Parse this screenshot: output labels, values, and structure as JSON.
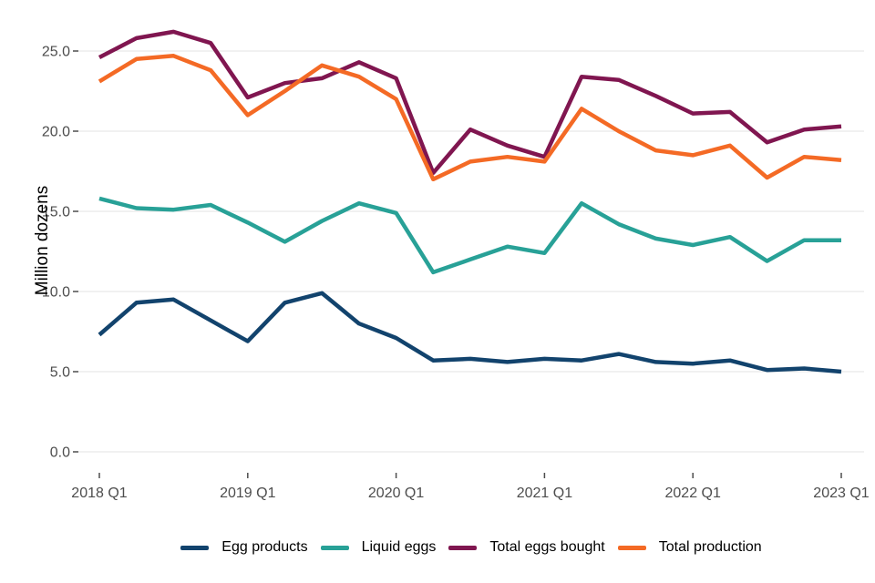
{
  "style": {
    "background": "#ffffff",
    "gridline_color": "#e3e3e3",
    "tick_color": "#4d4d4d",
    "axis_text_color": "#4d4d4d",
    "axis_title_color": "#000000"
  },
  "chart_data": {
    "type": "line",
    "title": "",
    "xlabel": "",
    "ylabel": "Million dozens",
    "ylim": [
      0,
      26.5
    ],
    "grid": "horizontal-only",
    "legend_position": "bottom",
    "yticks": [
      {
        "value": 0,
        "label": "0.0"
      },
      {
        "value": 5,
        "label": "5.0"
      },
      {
        "value": 10,
        "label": "10.0"
      },
      {
        "value": 15,
        "label": "15.0"
      },
      {
        "value": 20,
        "label": "20.0"
      },
      {
        "value": 25,
        "label": "25.0"
      }
    ],
    "xticks": [
      {
        "index": 0,
        "label": "2018 Q1"
      },
      {
        "index": 4,
        "label": "2019 Q1"
      },
      {
        "index": 8,
        "label": "2020 Q1"
      },
      {
        "index": 12,
        "label": "2021 Q1"
      },
      {
        "index": 16,
        "label": "2022 Q1"
      },
      {
        "index": 20,
        "label": "2023 Q1"
      }
    ],
    "categories": [
      "2018 Q1",
      "2018 Q2",
      "2018 Q3",
      "2018 Q4",
      "2019 Q1",
      "2019 Q2",
      "2019 Q3",
      "2019 Q4",
      "2020 Q1",
      "2020 Q2",
      "2020 Q3",
      "2020 Q4",
      "2021 Q1",
      "2021 Q2",
      "2021 Q3",
      "2021 Q4",
      "2022 Q1",
      "2022 Q2",
      "2022 Q3",
      "2022 Q4",
      "2023 Q1"
    ],
    "series": [
      {
        "id": "egg-products",
        "name": "Egg products",
        "color": "#12436D",
        "values": [
          7.3,
          9.3,
          9.5,
          8.2,
          6.9,
          9.3,
          9.9,
          8.0,
          7.1,
          5.7,
          5.8,
          5.6,
          5.8,
          5.7,
          6.1,
          5.6,
          5.5,
          5.7,
          5.1,
          5.2,
          5.0
        ]
      },
      {
        "id": "liquid-eggs",
        "name": "Liquid eggs",
        "color": "#28A197",
        "values": [
          15.8,
          15.2,
          15.1,
          15.4,
          14.3,
          13.1,
          14.4,
          15.5,
          14.9,
          11.2,
          12.0,
          12.8,
          12.4,
          15.5,
          14.2,
          13.3,
          12.9,
          13.4,
          11.9,
          13.2,
          13.2
        ]
      },
      {
        "id": "total-eggs-bought",
        "name": "Total eggs bought",
        "color": "#801650",
        "values": [
          24.6,
          25.8,
          26.2,
          25.5,
          22.1,
          23.0,
          23.3,
          24.3,
          23.3,
          17.4,
          20.1,
          19.1,
          18.4,
          23.4,
          23.2,
          22.2,
          21.1,
          21.2,
          19.3,
          20.1,
          20.3
        ]
      },
      {
        "id": "total-production",
        "name": "Total production",
        "color": "#F46A25",
        "values": [
          23.1,
          24.5,
          24.7,
          23.8,
          21.0,
          22.5,
          24.1,
          23.4,
          22.0,
          17.0,
          18.1,
          18.4,
          18.1,
          21.4,
          20.0,
          18.8,
          18.5,
          19.1,
          17.1,
          18.4,
          18.2
        ]
      }
    ]
  }
}
